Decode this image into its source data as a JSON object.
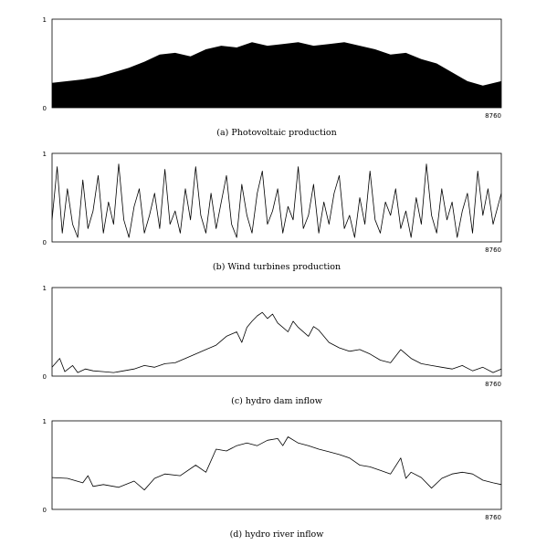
{
  "chart_data": [
    {
      "type": "bar",
      "caption": "(a) Photovoltaic production",
      "x_max_label": "8760",
      "y_tick_labels": [
        "0",
        "1"
      ],
      "xlim": [
        0,
        8760
      ],
      "ylim": [
        0,
        1
      ],
      "series": [
        {
          "x": [
            0,
            300,
            600,
            900,
            1200,
            1500,
            1800,
            2100,
            2400,
            2700,
            3000,
            3300,
            3600,
            3900,
            4200,
            4500,
            4800,
            5100,
            5400,
            5700,
            6000,
            6300,
            6600,
            6900,
            7200,
            7500,
            7800,
            8100,
            8400,
            8760
          ],
          "values": [
            0.28,
            0.3,
            0.32,
            0.35,
            0.4,
            0.45,
            0.52,
            0.6,
            0.62,
            0.58,
            0.66,
            0.7,
            0.68,
            0.74,
            0.7,
            0.72,
            0.74,
            0.7,
            0.72,
            0.74,
            0.7,
            0.66,
            0.6,
            0.62,
            0.55,
            0.5,
            0.4,
            0.3,
            0.25,
            0.3
          ]
        }
      ]
    },
    {
      "type": "line",
      "caption": "(b) Wind turbines production",
      "x_max_label": "8760",
      "y_tick_labels": [
        "0",
        "1"
      ],
      "xlim": [
        0,
        8760
      ],
      "ylim": [
        0,
        1
      ],
      "series": [
        {
          "x": [
            0,
            100,
            200,
            300,
            400,
            500,
            600,
            700,
            800,
            900,
            1000,
            1100,
            1200,
            1300,
            1400,
            1500,
            1600,
            1700,
            1800,
            1900,
            2000,
            2100,
            2200,
            2300,
            2400,
            2500,
            2600,
            2700,
            2800,
            2900,
            3000,
            3100,
            3200,
            3300,
            3400,
            3500,
            3600,
            3700,
            3800,
            3900,
            4000,
            4100,
            4200,
            4300,
            4400,
            4500,
            4600,
            4700,
            4800,
            4900,
            5000,
            5100,
            5200,
            5300,
            5400,
            5500,
            5600,
            5700,
            5800,
            5900,
            6000,
            6100,
            6200,
            6300,
            6400,
            6500,
            6600,
            6700,
            6800,
            6900,
            7000,
            7100,
            7200,
            7300,
            7400,
            7500,
            7600,
            7700,
            7800,
            7900,
            8000,
            8100,
            8200,
            8300,
            8400,
            8500,
            8600,
            8760
          ],
          "values": [
            0.25,
            0.85,
            0.1,
            0.6,
            0.2,
            0.05,
            0.7,
            0.15,
            0.35,
            0.75,
            0.1,
            0.45,
            0.2,
            0.88,
            0.25,
            0.05,
            0.4,
            0.6,
            0.1,
            0.3,
            0.55,
            0.15,
            0.82,
            0.2,
            0.35,
            0.1,
            0.6,
            0.25,
            0.85,
            0.3,
            0.1,
            0.55,
            0.15,
            0.45,
            0.75,
            0.2,
            0.05,
            0.65,
            0.3,
            0.1,
            0.55,
            0.8,
            0.2,
            0.35,
            0.6,
            0.1,
            0.4,
            0.25,
            0.85,
            0.15,
            0.3,
            0.65,
            0.1,
            0.45,
            0.2,
            0.55,
            0.75,
            0.15,
            0.3,
            0.05,
            0.5,
            0.2,
            0.8,
            0.25,
            0.1,
            0.45,
            0.3,
            0.6,
            0.15,
            0.35,
            0.05,
            0.5,
            0.2,
            0.88,
            0.3,
            0.1,
            0.6,
            0.25,
            0.45,
            0.05,
            0.35,
            0.55,
            0.1,
            0.8,
            0.3,
            0.6,
            0.2,
            0.55
          ]
        }
      ]
    },
    {
      "type": "line",
      "caption": "(c) hydro dam inflow",
      "x_max_label": "8760",
      "y_tick_labels": [
        "0",
        "1"
      ],
      "xlim": [
        0,
        8760
      ],
      "ylim": [
        0,
        1
      ],
      "series": [
        {
          "x": [
            0,
            150,
            250,
            400,
            500,
            650,
            800,
            1000,
            1200,
            1400,
            1600,
            1800,
            2000,
            2200,
            2400,
            2600,
            2800,
            3000,
            3200,
            3400,
            3600,
            3700,
            3800,
            3900,
            4000,
            4100,
            4200,
            4300,
            4400,
            4500,
            4600,
            4700,
            4800,
            5000,
            5100,
            5200,
            5400,
            5600,
            5800,
            6000,
            6200,
            6400,
            6600,
            6800,
            7000,
            7200,
            7400,
            7600,
            7800,
            8000,
            8200,
            8400,
            8600,
            8760
          ],
          "values": [
            0.1,
            0.2,
            0.05,
            0.12,
            0.04,
            0.08,
            0.06,
            0.05,
            0.04,
            0.06,
            0.08,
            0.12,
            0.1,
            0.14,
            0.15,
            0.2,
            0.25,
            0.3,
            0.35,
            0.45,
            0.5,
            0.38,
            0.55,
            0.62,
            0.68,
            0.72,
            0.65,
            0.7,
            0.6,
            0.55,
            0.5,
            0.62,
            0.55,
            0.45,
            0.56,
            0.52,
            0.38,
            0.32,
            0.28,
            0.3,
            0.25,
            0.18,
            0.15,
            0.3,
            0.2,
            0.14,
            0.12,
            0.1,
            0.08,
            0.12,
            0.06,
            0.1,
            0.04,
            0.08
          ]
        }
      ]
    },
    {
      "type": "line",
      "caption": "(d) hydro river inflow",
      "x_max_label": "8760",
      "y_tick_labels": [
        "0",
        "1"
      ],
      "xlim": [
        0,
        8760
      ],
      "ylim": [
        0,
        1
      ],
      "series": [
        {
          "x": [
            0,
            300,
            600,
            700,
            800,
            1000,
            1300,
            1600,
            1800,
            2000,
            2200,
            2500,
            2800,
            3000,
            3200,
            3400,
            3600,
            3800,
            4000,
            4200,
            4400,
            4500,
            4600,
            4800,
            5000,
            5200,
            5400,
            5600,
            5800,
            6000,
            6200,
            6400,
            6600,
            6800,
            6900,
            7000,
            7200,
            7400,
            7600,
            7800,
            8000,
            8200,
            8400,
            8600,
            8760
          ],
          "values": [
            0.36,
            0.35,
            0.3,
            0.38,
            0.26,
            0.28,
            0.25,
            0.32,
            0.22,
            0.35,
            0.4,
            0.38,
            0.5,
            0.42,
            0.68,
            0.66,
            0.72,
            0.75,
            0.72,
            0.78,
            0.8,
            0.72,
            0.82,
            0.75,
            0.72,
            0.68,
            0.65,
            0.62,
            0.58,
            0.5,
            0.48,
            0.44,
            0.4,
            0.58,
            0.35,
            0.42,
            0.36,
            0.24,
            0.35,
            0.4,
            0.42,
            0.4,
            0.33,
            0.3,
            0.28
          ]
        }
      ]
    }
  ]
}
